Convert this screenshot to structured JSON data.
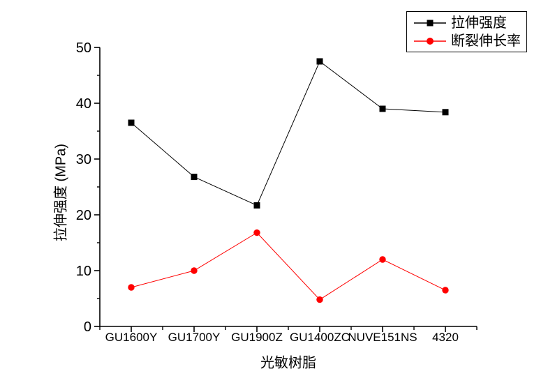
{
  "chart_data": {
    "type": "line",
    "categories": [
      "GU1600Y",
      "GU1700Y",
      "GU1900Z",
      "GU1400ZC",
      "NUVE151NS",
      "4320"
    ],
    "series": [
      {
        "name": "拉伸强度",
        "marker": "square",
        "color": "#000000",
        "values": [
          36.5,
          26.8,
          21.7,
          47.5,
          39.0,
          38.4
        ]
      },
      {
        "name": "断裂伸长率",
        "marker": "circle",
        "color": "#ff0000",
        "values": [
          7.0,
          10.0,
          16.8,
          4.8,
          12.0,
          6.5
        ]
      }
    ],
    "title": "",
    "xlabel": "光敏树脂",
    "ylabel": "拉伸强度 (MPa)",
    "ylim": [
      0,
      50
    ],
    "yticks": [
      0,
      10,
      20,
      30,
      40,
      50
    ],
    "y_minor_step": 5,
    "grid": false,
    "legend_position": "top-right",
    "axis_color": "#000000",
    "background_color": "#ffffff"
  }
}
